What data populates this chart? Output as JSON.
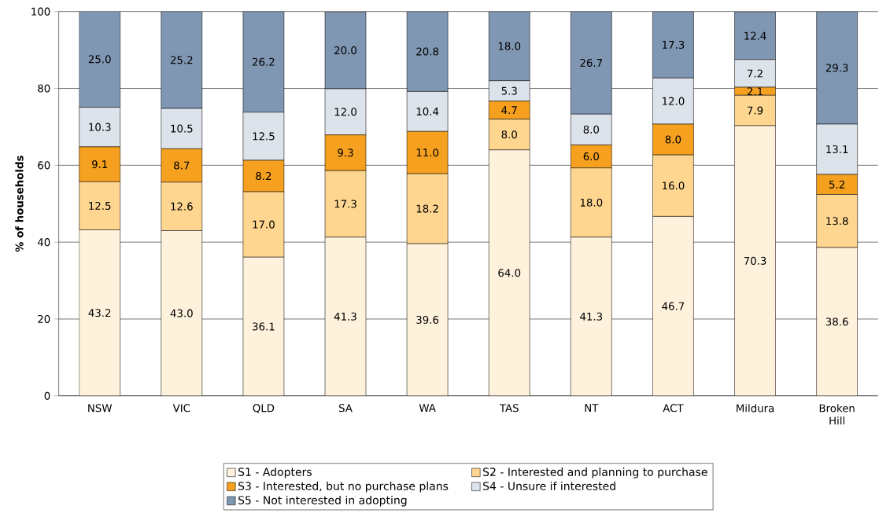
{
  "chart_data": {
    "type": "bar",
    "stacked": true,
    "ylabel": "% of households",
    "categories": [
      "NSW",
      "VIC",
      "QLD",
      "SA",
      "WA",
      "TAS",
      "NT",
      "ACT",
      "Mildura",
      "Broken Hill"
    ],
    "series": [
      {
        "name": "S1 - Adopters",
        "color": "#fff2dc",
        "values": [
          43.2,
          43.0,
          36.1,
          41.3,
          39.6,
          64.0,
          41.3,
          46.7,
          70.3,
          38.6
        ],
        "value_labels": [
          "43.2",
          "43.0",
          "36.1",
          "41.3",
          "39.6",
          "64.0",
          "41.3",
          "46.7",
          "70.3",
          "38.6"
        ]
      },
      {
        "name": "S2 - Interested and planning to purchase",
        "color": "#ffd690",
        "values": [
          12.5,
          12.6,
          17.0,
          17.3,
          18.2,
          8.0,
          18.0,
          16.0,
          7.9,
          13.8
        ],
        "value_labels": [
          "12.5",
          "12.6",
          "17.0",
          "17.3",
          "18.2",
          "8.0",
          "18.0",
          "16.0",
          "7.9",
          "13.8"
        ]
      },
      {
        "name": "S3 - Interested, but no purchase plans",
        "color": "#f5a01e",
        "values": [
          9.1,
          8.7,
          8.2,
          9.3,
          11.0,
          4.7,
          6.0,
          8.0,
          2.1,
          5.2
        ],
        "value_labels": [
          "9.1",
          "8.7",
          "8.2",
          "9.3",
          "11.0",
          "4.7",
          "6.0",
          "8.0",
          "2.1",
          "5.2"
        ]
      },
      {
        "name": "S4 - Unsure if interested",
        "color": "#dde3ea",
        "values": [
          10.3,
          10.5,
          12.5,
          12.0,
          10.4,
          5.3,
          8.0,
          12.0,
          7.2,
          13.1
        ],
        "value_labels": [
          "10.3",
          "10.5",
          "12.5",
          "12.0",
          "10.4",
          "5.3",
          "8.0",
          "12.0",
          "7.2",
          "13.1"
        ]
      },
      {
        "name": "S5 - Not interested in adopting",
        "color": "#7f97b2",
        "values": [
          25.0,
          25.2,
          26.2,
          20.0,
          20.8,
          18.0,
          26.7,
          17.3,
          12.4,
          29.3
        ],
        "value_labels": [
          "25.0",
          "25.2",
          "26.2",
          "20.0",
          "20.8",
          "18.0",
          "26.7",
          "17.3",
          "12.4",
          "29.3"
        ]
      }
    ],
    "ylim": [
      0,
      100
    ],
    "yticks": [
      0,
      20,
      40,
      60,
      80,
      100
    ],
    "grid": "y",
    "legend": "bottom"
  }
}
